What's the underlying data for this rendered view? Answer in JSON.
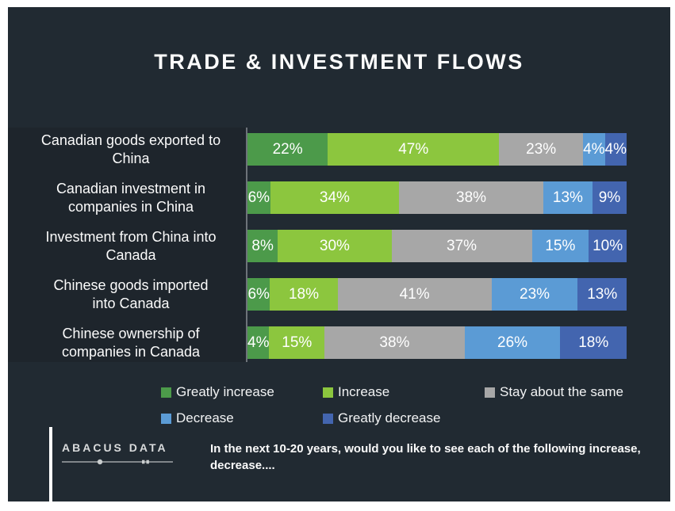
{
  "slide": {
    "title": "TRADE & INVESTMENT FLOWS",
    "footer": {
      "logo_text": "ABACUS DATA",
      "question": "In the next 10-20 years, would you like to see each of the following increase, decrease...."
    }
  },
  "colors": {
    "background": "#212a32",
    "label_panel": "#1e252c",
    "axis_line": "#6d737a",
    "text": "#ffffff",
    "greatly_increase": "#4c9a4a",
    "increase": "#8cc63e",
    "stay_same": "#a7a7a7",
    "decrease": "#5b9bd5",
    "greatly_decrease": "#4365af"
  },
  "chart_data": {
    "type": "bar",
    "orientation": "horizontal",
    "stacked": true,
    "unit": "%",
    "title": "TRADE & INVESTMENT FLOWS",
    "xlabel": "",
    "ylabel": "",
    "xlim": [
      0,
      100
    ],
    "grid": false,
    "legend_position": "bottom",
    "value_label_format": "{value}%",
    "categories": [
      [
        "Canadian goods exported to",
        "China"
      ],
      [
        "Canadian investment in",
        "companies in China"
      ],
      [
        "Investment from China into",
        "Canada"
      ],
      [
        "Chinese goods imported",
        "into Canada"
      ],
      [
        "Chinese ownership of",
        "companies in Canada"
      ]
    ],
    "series": [
      {
        "name": "Greatly increase",
        "color": "#4c9a4a",
        "values": [
          22,
          6,
          8,
          6,
          4
        ]
      },
      {
        "name": "Increase",
        "color": "#8cc63e",
        "values": [
          47,
          34,
          30,
          18,
          15
        ]
      },
      {
        "name": "Stay about the same",
        "color": "#a7a7a7",
        "values": [
          23,
          38,
          37,
          41,
          38
        ]
      },
      {
        "name": "Decrease",
        "color": "#5b9bd5",
        "values": [
          4,
          13,
          15,
          23,
          26
        ]
      },
      {
        "name": "Greatly decrease",
        "color": "#4365af",
        "values": [
          4,
          9,
          10,
          13,
          18
        ]
      }
    ]
  }
}
